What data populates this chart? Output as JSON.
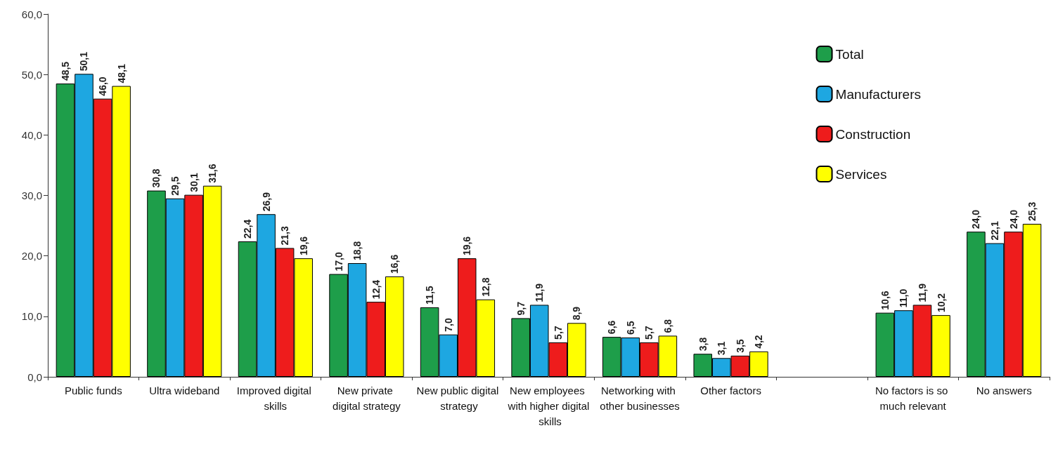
{
  "chart_data": {
    "type": "bar",
    "categories": [
      "Public funds",
      "Ultra wideband",
      "Improved digital skills",
      "New private digital strategy",
      "New public digital strategy",
      "New employees with higher digital skills",
      "Networking with other businesses",
      "Other factors",
      null,
      "No factors is so much relevant",
      "No answers"
    ],
    "series": [
      {
        "name": "Total",
        "color": "#1e9e4a",
        "values": [
          48.5,
          30.8,
          22.4,
          17.0,
          11.5,
          9.7,
          6.6,
          3.8,
          null,
          10.6,
          24.0
        ],
        "value_labels": [
          "48,5",
          "30,8",
          "22,4",
          "17,0",
          "11,5",
          "9,7",
          "6,6",
          "3,8",
          null,
          "10,6",
          "24,0"
        ]
      },
      {
        "name": "Manufacturers",
        "color": "#1ea7e1",
        "values": [
          50.1,
          29.5,
          26.9,
          18.8,
          7.0,
          11.9,
          6.5,
          3.1,
          null,
          11.0,
          22.1
        ],
        "value_labels": [
          "50,1",
          "29,5",
          "26,9",
          "18,8",
          "7,0",
          "11,9",
          "6,5",
          "3,1",
          null,
          "11,0",
          "22,1"
        ]
      },
      {
        "name": "Construction",
        "color": "#ee1c1c",
        "values": [
          46.0,
          30.1,
          21.3,
          12.4,
          19.6,
          5.7,
          5.7,
          3.5,
          null,
          11.9,
          24.0
        ],
        "value_labels": [
          "46,0",
          "30,1",
          "21,3",
          "12,4",
          "19,6",
          "5,7",
          "5,7",
          "3,5",
          null,
          "11,9",
          "24,0"
        ]
      },
      {
        "name": "Services",
        "color": "#ffff00",
        "values": [
          48.1,
          31.6,
          19.6,
          16.6,
          12.8,
          8.9,
          6.8,
          4.2,
          null,
          10.2,
          25.3
        ],
        "value_labels": [
          "48,1",
          "31,6",
          "19,6",
          "16,6",
          "12,8",
          "8,9",
          "6,8",
          "4,2",
          null,
          "10,2",
          "25,3"
        ]
      }
    ],
    "ylim": [
      0,
      60
    ],
    "yticks": [
      {
        "value": 0,
        "label": "0,0"
      },
      {
        "value": 10,
        "label": "10,0"
      },
      {
        "value": 20,
        "label": "20,0"
      },
      {
        "value": 30,
        "label": "30,0"
      },
      {
        "value": 40,
        "label": "40,0"
      },
      {
        "value": 50,
        "label": "50,0"
      },
      {
        "value": 60,
        "label": "60,0"
      }
    ],
    "grid": false,
    "legend": "top right"
  }
}
